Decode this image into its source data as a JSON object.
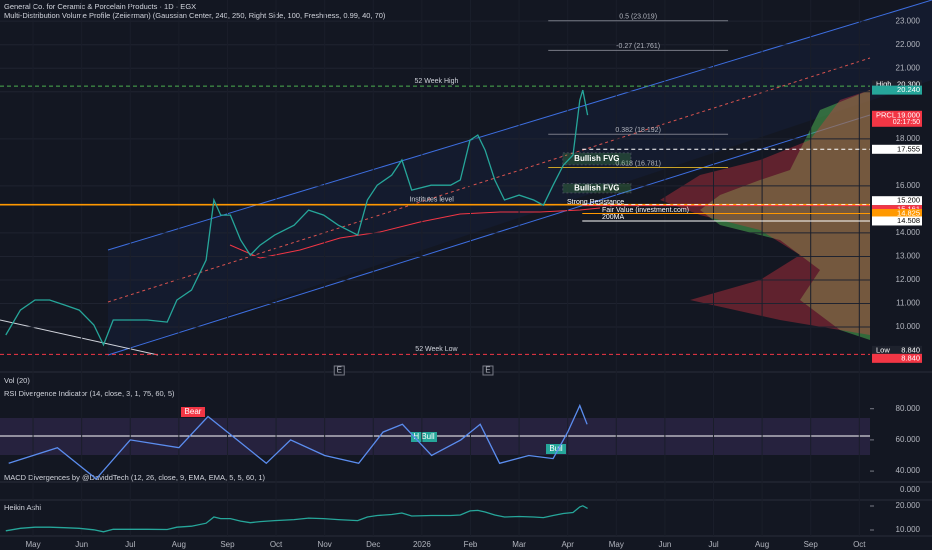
{
  "header": {
    "title": "General Co. for Ceramic & Porcelain Products · 1D · EGX",
    "indicator": "Multi-Distribution Volume Profile (Zeiierman) (Gaussian Center, 240, 250, Right Side, 100, Freshness, 0.99, 40, 70)"
  },
  "chart_data": {
    "type": "line",
    "x": [
      -0.56,
      -0.26,
      0.04,
      0.34,
      0.64,
      0.95,
      1.25,
      1.45,
      1.65,
      1.95,
      2.35,
      2.76,
      2.96,
      3.26,
      3.56,
      3.72,
      3.86,
      4.06,
      4.27,
      4.47,
      4.67,
      4.97,
      5.37,
      5.67,
      5.98,
      6.28,
      6.68,
      6.88,
      7.08,
      7.38,
      7.59,
      7.79,
      8.19,
      8.59,
      8.79,
      8.99,
      9.15,
      9.3,
      9.5,
      9.7,
      10.0,
      10.3,
      10.5,
      10.7,
      10.91,
      11.11,
      11.25,
      11.31,
      11.41
    ],
    "values": [
      9.66,
      10.72,
      11.15,
      11.15,
      10.94,
      10.72,
      10.09,
      9.24,
      10.3,
      10.3,
      10.3,
      10.21,
      11.15,
      11.57,
      12.85,
      15.4,
      14.76,
      14.76,
      13.7,
      13.06,
      13.48,
      13.91,
      14.33,
      14.97,
      14.76,
      14.33,
      13.91,
      15.4,
      16.03,
      16.46,
      17.1,
      15.82,
      16.03,
      16.03,
      16.25,
      17.94,
      18.16,
      17.52,
      16.25,
      15.4,
      15.61,
      15.4,
      15.18,
      16.03,
      16.88,
      17.31,
      19.64,
      20.07,
      19.01
    ],
    "color": "#26a69a",
    "xlim": [
      -0.68,
      17.22
    ],
    "xticks": [
      {
        "value": 0,
        "label": "May"
      },
      {
        "value": 1,
        "label": "Jun"
      },
      {
        "value": 2,
        "label": "Jul"
      },
      {
        "value": 3,
        "label": "Aug"
      },
      {
        "value": 4,
        "label": "Sep"
      },
      {
        "value": 5,
        "label": "Oct"
      },
      {
        "value": 6,
        "label": "Nov"
      },
      {
        "value": 7,
        "label": "Dec"
      },
      {
        "value": 8,
        "label": "2026"
      },
      {
        "value": 9,
        "label": "Feb"
      },
      {
        "value": 10,
        "label": "Mar"
      },
      {
        "value": 11,
        "label": "Apr"
      },
      {
        "value": 12,
        "label": "May"
      },
      {
        "value": 13,
        "label": "Jun"
      },
      {
        "value": 14,
        "label": "Jul"
      },
      {
        "value": 15,
        "label": "Aug"
      },
      {
        "value": 16,
        "label": "Sep"
      },
      {
        "value": 17,
        "label": "Oct"
      }
    ],
    "ylim": [
      8.2,
      23.9
    ],
    "yticks": [
      {
        "value": 10,
        "label": "10.000"
      },
      {
        "value": 11,
        "label": "11.000"
      },
      {
        "value": 12,
        "label": "12.000"
      },
      {
        "value": 13,
        "label": "13.000"
      },
      {
        "value": 14,
        "label": "14.000"
      },
      {
        "value": 16,
        "label": "16.000"
      },
      {
        "value": 18,
        "label": "18.000"
      },
      {
        "value": 20,
        "label": "20.000"
      },
      {
        "value": 21,
        "label": "21.000"
      },
      {
        "value": 22,
        "label": "22.000"
      },
      {
        "value": 23,
        "label": "23.000"
      }
    ],
    "grid": true,
    "levels": [
      {
        "name": "52 Week High",
        "value": 20.24,
        "color": "#4caf50"
      },
      {
        "name": "52 Week Low",
        "value": 8.84,
        "color": "#f23645"
      },
      {
        "name": "Institutes level",
        "value": 15.2,
        "color": "#ff9800"
      }
    ],
    "fib": [
      {
        "value": 23.019,
        "label": "0.5 (23.019)"
      },
      {
        "value": 21.761,
        "label": "-0.27 (21.761)"
      },
      {
        "value": 18.192,
        "label": "0.382 (18.192)"
      },
      {
        "value": 16.781,
        "label": "0.618 (16.781)"
      }
    ],
    "zones": [
      {
        "name": "Bullish FVG",
        "top": 17.4,
        "bottom": 16.9
      },
      {
        "name": "Bullish FVG",
        "top": 16.1,
        "bottom": 15.7
      }
    ],
    "annotations": [
      "Strong Resistance",
      "Fair Value (investment.com)",
      "200MA"
    ],
    "events": [
      {
        "label": "E",
        "x": 6.3
      },
      {
        "label": "E",
        "x": 9.36
      }
    ],
    "price_tags": [
      {
        "name": "High",
        "value": 20.3,
        "label": "20.300",
        "color": "#1e222d"
      },
      {
        "value": 20.24,
        "label": "20.240",
        "color": "#26a69a"
      },
      {
        "name": "PRCL",
        "value": 19.0,
        "label": "19.000",
        "sub": "02:17:50",
        "color": "#f23645"
      },
      {
        "value": 17.555,
        "label": "17.555",
        "color": "#ffffff"
      },
      {
        "value": 15.2,
        "label": "15.200",
        "color": "#ffffff"
      },
      {
        "value": 15.161,
        "label": "15.161",
        "color": "#f23645"
      },
      {
        "value": 14.825,
        "label": "14.825",
        "color": "#ff9800"
      },
      {
        "value": 14.508,
        "label": "14.508",
        "color": "#ffffff"
      },
      {
        "name": "Low",
        "value": 8.84,
        "label": "8.840",
        "color": "#1e222d"
      },
      {
        "value": 8.84,
        "label": "8.840",
        "color": "#f23645"
      }
    ]
  },
  "volume": {
    "title": "Vol (20)"
  },
  "rsi": {
    "title": "RSI Divergence Indicator (14, close, 3, 1, 75, 60, 5)",
    "x": [
      -0.5,
      0.5,
      1.3,
      2.0,
      3.0,
      3.6,
      4.2,
      4.8,
      5.3,
      6.0,
      6.7,
      7.2,
      7.6,
      8.2,
      8.8,
      9.2,
      9.6,
      10.2,
      10.7,
      11.0,
      11.25,
      11.4
    ],
    "values": [
      45,
      55,
      35,
      60,
      55,
      75,
      60,
      45,
      60,
      50,
      45,
      65,
      70,
      50,
      60,
      70,
      45,
      50,
      48,
      65,
      82,
      70
    ],
    "color": "#5b8def",
    "ylim": [
      33,
      92
    ],
    "yticks": [
      {
        "value": 80,
        "label": "80.000"
      },
      {
        "value": 60,
        "label": "60.000"
      },
      {
        "value": 40,
        "label": "40.000"
      }
    ],
    "signals": [
      "Bear",
      "H Bull",
      "Bull"
    ]
  },
  "macd": {
    "title": "MACD Divergences by @DaviddTech (12, 26, close, 9, EMA, EMA, 5, 5, 60, 1)",
    "tick_labels": [
      "0.000"
    ]
  },
  "heikin_ashi": {
    "title": "Heikin Ashi",
    "ylim": [
      7.5,
      22.5
    ],
    "yticks": [
      {
        "value": 20,
        "label": "20.000"
      },
      {
        "value": 10,
        "label": "10.000"
      }
    ]
  }
}
